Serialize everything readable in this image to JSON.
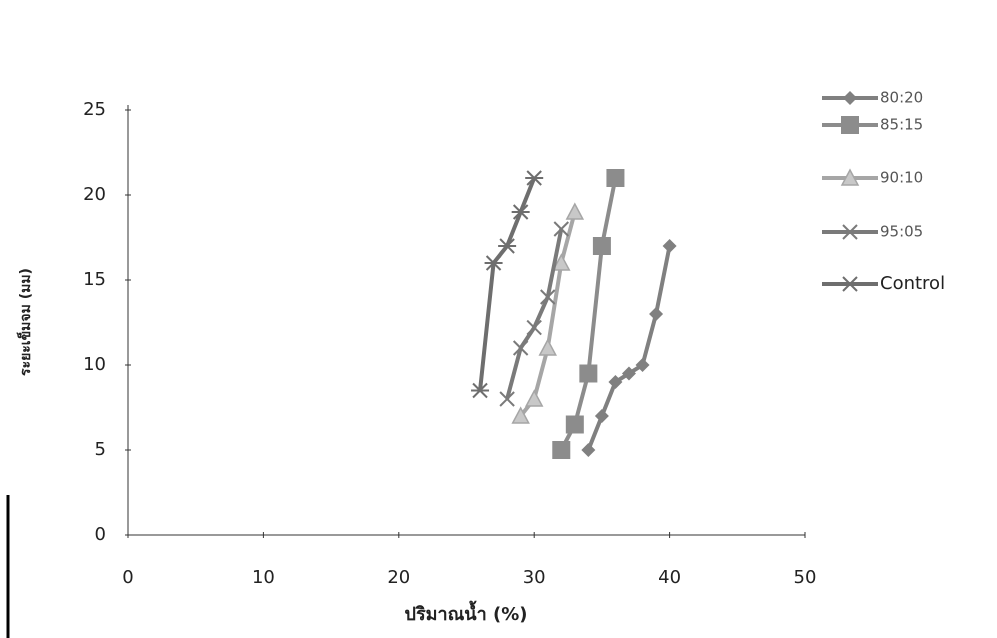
{
  "chart_data": {
    "type": "line",
    "x_label": "ปริมาณน้ำ (%)",
    "y_label": "ระยะเข็มจม (มม)",
    "xlim": [
      0,
      50
    ],
    "xticks": [
      0,
      10,
      20,
      30,
      40,
      50
    ],
    "ylim": [
      0,
      25
    ],
    "yticks": [
      0,
      5,
      10,
      15,
      20,
      25
    ],
    "grid": false,
    "legend": "right",
    "series": [
      {
        "name": "80:20",
        "color": "#808080",
        "marker": "diamond",
        "x": [
          34,
          35,
          36,
          37,
          38,
          39,
          40
        ],
        "values": [
          5,
          7,
          9,
          9.5,
          10,
          13,
          17
        ]
      },
      {
        "name": "85:15",
        "color": "#8c8c8c",
        "marker": "square",
        "x": [
          32,
          33,
          34,
          35,
          36
        ],
        "values": [
          5,
          6.5,
          9.5,
          17,
          21
        ]
      },
      {
        "name": "90:10",
        "color": "#a6a6a6",
        "marker": "triangle",
        "x": [
          29,
          30,
          31,
          32,
          33
        ],
        "values": [
          7,
          8,
          11,
          16,
          19
        ]
      },
      {
        "name": "95:05",
        "color": "#7a7a7a",
        "marker": "cross",
        "x": [
          28,
          29,
          30,
          31,
          32
        ],
        "values": [
          8,
          11,
          12.2,
          14,
          18
        ]
      },
      {
        "name": "Control",
        "color": "#6e6e6e",
        "marker": "asterisk",
        "x": [
          26,
          27,
          28,
          29,
          30
        ],
        "values": [
          8.5,
          16,
          17,
          19,
          21
        ]
      }
    ]
  }
}
